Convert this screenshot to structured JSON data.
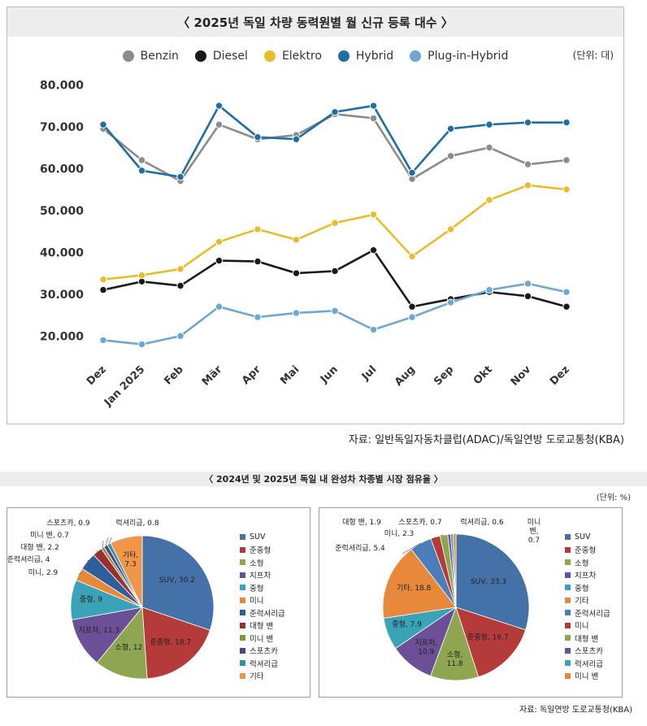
{
  "line_chart": {
    "title": "〈 2025년 독일 차량 동력원별 월 신규 등록 대수 〉",
    "unit": "(단위: 대)",
    "source": "자료: 일반독일자동차클럽(ADAC)/독일연방 도로교통청(KBA)"
  },
  "pie_panel": {
    "title": "〈 2024년 및 2025년 독일 내 완성차 차종별 시장 점유율 〉",
    "unit": "(단위: %)",
    "source": "자료: 독일연방 도로교통청(KBA)"
  },
  "chart_data": [
    {
      "type": "line",
      "title": "〈 2025년 독일 차량 동력원별 월 신규 등록 대수 〉",
      "xlabel": "",
      "ylabel": "",
      "x": [
        "Dez",
        "Jan 2025",
        "Feb",
        "Mär",
        "Apr",
        "Mai",
        "Jun",
        "Jul",
        "Aug",
        "Sep",
        "Okt",
        "Nov",
        "Dez"
      ],
      "y_ticks": [
        "20.000",
        "30.000",
        "40.000",
        "50.000",
        "60.000",
        "70.000",
        "80.000"
      ],
      "y_tick_values": [
        20000,
        30000,
        40000,
        50000,
        60000,
        70000,
        80000
      ],
      "ylim": [
        15000,
        82000
      ],
      "series": [
        {
          "name": "Benzin",
          "color": "#8c8c8c",
          "values": [
            69500,
            62000,
            57000,
            70500,
            67000,
            68000,
            73000,
            72000,
            57500,
            63000,
            65000,
            61000,
            62000
          ]
        },
        {
          "name": "Diesel",
          "color": "#1a1a1a",
          "values": [
            31000,
            33000,
            32000,
            38000,
            37800,
            35000,
            35500,
            40500,
            27000,
            28800,
            30500,
            29500,
            27000
          ]
        },
        {
          "name": "Elektro",
          "color": "#e8bd2c",
          "values": [
            33500,
            34500,
            36000,
            42500,
            45500,
            43000,
            47000,
            49000,
            39000,
            45500,
            52500,
            56000,
            55000
          ]
        },
        {
          "name": "Hybrid",
          "color": "#1f6fa3",
          "values": [
            70500,
            59500,
            58000,
            75000,
            67500,
            67000,
            73500,
            75000,
            59000,
            69500,
            70500,
            71000,
            71000
          ]
        },
        {
          "name": "Plug-in-Hybrid",
          "color": "#6ea7d3",
          "values": [
            19000,
            18000,
            20000,
            27000,
            24500,
            25500,
            26000,
            21500,
            24500,
            28000,
            31000,
            32500,
            30500
          ]
        }
      ]
    },
    {
      "type": "pie",
      "title": "2024",
      "slices": [
        {
          "label": "SUV",
          "value": 30.2,
          "color": "#4472a8",
          "text": "SUV, 30.2"
        },
        {
          "label": "준중형",
          "value": 18.7,
          "color": "#b53a3a",
          "text": "준중형, 18.7"
        },
        {
          "label": "소형",
          "value": 12,
          "color": "#8ea64f",
          "text": "소형, 12"
        },
        {
          "label": "지프차",
          "value": 11.3,
          "color": "#6b4f97",
          "text": "지프차, 11.3"
        },
        {
          "label": "중형",
          "value": 9,
          "color": "#3aa3b8",
          "text": "중형, 9"
        },
        {
          "label": "미니",
          "value": 2.9,
          "color": "#e8883a",
          "text": "미니, 2.9"
        },
        {
          "label": "준럭셔리급",
          "value": 4,
          "color": "#2f5f9a",
          "text": "준럭셔리급, 4"
        },
        {
          "label": "대형 밴",
          "value": 2.2,
          "color": "#9b2f2f",
          "text": "대형 밴, 2.2"
        },
        {
          "label": "미니 밴",
          "value": 0.7,
          "color": "#7a9a3a",
          "text": "미니 밴, 0.7"
        },
        {
          "label": "스포츠카",
          "value": 0.9,
          "color": "#5b4088",
          "text": "스포츠카, 0.9"
        },
        {
          "label": "럭셔리급",
          "value": 0.8,
          "color": "#2d93ad",
          "text": "럭셔리급, 0.8"
        },
        {
          "label": "기타",
          "value": 7.3,
          "color": "#f0954a",
          "text": "기타, 7.3"
        }
      ],
      "legend": [
        "SUV",
        "준중형",
        "소형",
        "지프차",
        "중형",
        "미니",
        "준럭셔리급",
        "대형 밴",
        "미니 밴",
        "스포츠카",
        "럭셔리급",
        "기타"
      ],
      "legend_colors": [
        "#4472a8",
        "#b53a3a",
        "#8ea64f",
        "#6b4f97",
        "#3aa3b8",
        "#e8883a",
        "#2f5f9a",
        "#9b2f2f",
        "#7a9a3a",
        "#5b4088",
        "#2d93ad",
        "#f0954a"
      ]
    },
    {
      "type": "pie",
      "title": "2025",
      "slices": [
        {
          "label": "SUV",
          "value": 33.3,
          "color": "#4472a8",
          "text": "SUV, 33.3"
        },
        {
          "label": "준중형",
          "value": 16.7,
          "color": "#b53a3a",
          "text": "준중형, 16.7"
        },
        {
          "label": "소형",
          "value": 11.8,
          "color": "#8ea64f",
          "text": "소형, 11.8"
        },
        {
          "label": "지프차",
          "value": 10.9,
          "color": "#6b4f97",
          "text": "지프차, 10.9"
        },
        {
          "label": "중형",
          "value": 7.9,
          "color": "#3aa3b8",
          "text": "중형, 7.9"
        },
        {
          "label": "기타",
          "value": 18.8,
          "color": "#e8883a",
          "text": "기타, 18.8"
        },
        {
          "label": "준럭셔리급",
          "value": 5.4,
          "color": "#4a7dba",
          "text": "준럭셔리급, 5.4"
        },
        {
          "label": "미니",
          "value": 2.3,
          "color": "#b53a3a",
          "text": "미니, 2.3"
        },
        {
          "label": "대형 밴",
          "value": 1.9,
          "color": "#8ea64f",
          "text": "대형 밴, 1.9"
        },
        {
          "label": "스포츠카",
          "value": 0.7,
          "color": "#6b4f97",
          "text": "스포츠카, 0.7"
        },
        {
          "label": "럭셔리급",
          "value": 0.6,
          "color": "#3aa3b8",
          "text": "럭셔리급, 0.6"
        },
        {
          "label": "미니 밴",
          "value": 0.7,
          "color": "#e8883a",
          "text": "미니 밴, 0.7"
        }
      ],
      "legend": [
        "SUV",
        "준중형",
        "소형",
        "지프차",
        "중형",
        "기타",
        "준럭셔리급",
        "미니",
        "대형 밴",
        "스포츠카",
        "럭셔리급",
        "미니 밴"
      ],
      "legend_colors": [
        "#4472a8",
        "#b53a3a",
        "#8ea64f",
        "#6b4f97",
        "#3aa3b8",
        "#e8883a",
        "#4a7dba",
        "#b53a3a",
        "#8ea64f",
        "#6b4f97",
        "#3aa3b8",
        "#e8883a"
      ]
    }
  ]
}
